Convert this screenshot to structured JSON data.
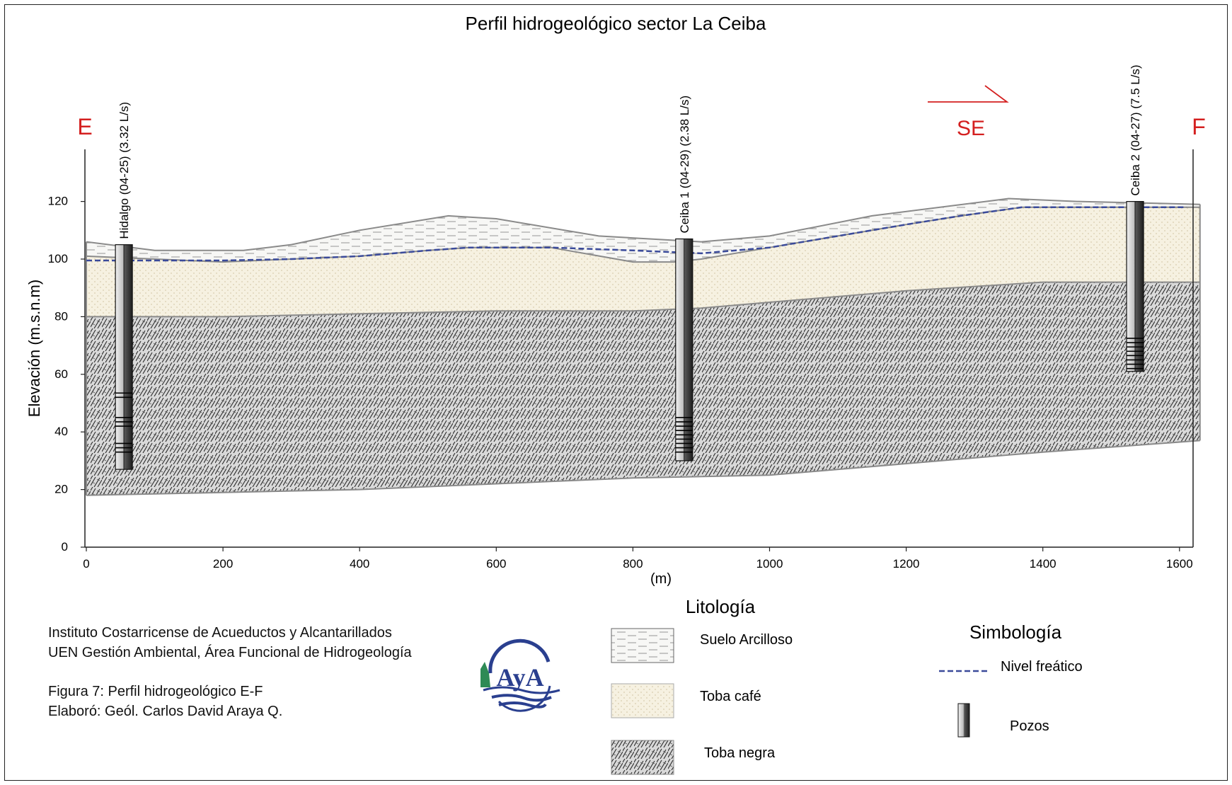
{
  "title": "Perfil hidrogeológico sector La Ceiba",
  "endpoints": {
    "left": "E",
    "right": "F"
  },
  "direction_label": "SE",
  "axes": {
    "ylabel": "Elevación (m.s.n.m)",
    "xlabel": "(m)",
    "yticks": [
      "0",
      "20",
      "40",
      "60",
      "80",
      "100",
      "120"
    ],
    "xticks": [
      "0",
      "200",
      "400",
      "600",
      "800",
      "1000",
      "1200",
      "1400",
      "1600"
    ]
  },
  "wells": [
    {
      "label": "Hidalgo (04-25) (3.32 L/s)",
      "distance_m": 55,
      "top_m": 105,
      "bottom_m": 27,
      "screens": [
        [
          52,
          54
        ],
        [
          42,
          45
        ],
        [
          33,
          36
        ]
      ]
    },
    {
      "label": "Ceiba 1 (04-29) (2.38 L/s)",
      "distance_m": 875,
      "top_m": 107,
      "bottom_m": 30,
      "screens": [
        [
          33,
          46
        ]
      ]
    },
    {
      "label": "Ceiba 2 (04-27) (7.5 L/s)",
      "distance_m": 1535,
      "top_m": 120,
      "bottom_m": 61,
      "screens": [
        [
          62,
          73
        ]
      ]
    }
  ],
  "layers": [
    {
      "name": "Suelo Arcilloso",
      "top": [
        [
          0,
          106
        ],
        [
          100,
          103
        ],
        [
          230,
          103
        ],
        [
          300,
          105
        ],
        [
          400,
          110
        ],
        [
          530,
          115
        ],
        [
          600,
          114
        ],
        [
          750,
          108
        ],
        [
          900,
          106
        ],
        [
          1000,
          108
        ],
        [
          1150,
          115
        ],
        [
          1350,
          121
        ],
        [
          1450,
          120
        ],
        [
          1630,
          119
        ]
      ]
    },
    {
      "name": "Toba café",
      "top": [
        [
          0,
          101
        ],
        [
          200,
          99
        ],
        [
          300,
          100
        ],
        [
          400,
          101
        ],
        [
          500,
          103
        ],
        [
          560,
          104
        ],
        [
          680,
          104
        ],
        [
          800,
          99
        ],
        [
          860,
          99
        ],
        [
          900,
          100
        ],
        [
          1000,
          104
        ],
        [
          1100,
          108
        ],
        [
          1200,
          112
        ],
        [
          1280,
          115
        ],
        [
          1370,
          118
        ],
        [
          1630,
          118
        ]
      ]
    },
    {
      "name": "Toba negra",
      "top": [
        [
          0,
          80
        ],
        [
          200,
          80
        ],
        [
          400,
          81
        ],
        [
          600,
          82
        ],
        [
          800,
          82
        ],
        [
          900,
          83
        ],
        [
          1000,
          85
        ],
        [
          1200,
          89
        ],
        [
          1400,
          92
        ],
        [
          1630,
          92
        ]
      ],
      "bottom": [
        [
          0,
          18
        ],
        [
          200,
          19
        ],
        [
          400,
          20
        ],
        [
          600,
          22
        ],
        [
          800,
          24
        ],
        [
          1000,
          25
        ],
        [
          1200,
          29
        ],
        [
          1400,
          33
        ],
        [
          1630,
          37
        ]
      ]
    }
  ],
  "water_table": [
    [
      0,
      99.5
    ],
    [
      200,
      99.5
    ],
    [
      300,
      100
    ],
    [
      400,
      101
    ],
    [
      500,
      103
    ],
    [
      560,
      104
    ],
    [
      680,
      104
    ],
    [
      800,
      103
    ],
    [
      900,
      102
    ],
    [
      1000,
      104
    ],
    [
      1100,
      108
    ],
    [
      1200,
      112
    ],
    [
      1280,
      115
    ],
    [
      1370,
      118
    ],
    [
      1550,
      118
    ],
    [
      1610,
      118
    ]
  ],
  "legend": {
    "litho_title": "Litología",
    "litho_items": [
      "Suelo Arcilloso",
      "Toba café",
      "Toba negra"
    ],
    "symb_title": "Simbología",
    "symb_items": [
      "Nivel freático",
      "Pozos"
    ]
  },
  "credits": {
    "line1": "Instituto Costarricense de Acueductos y Alcantarillados",
    "line2": "UEN Gestión Ambiental, Área Funcional de Hidrogeología",
    "line3": "Figura 7: Perfil hidrogeológico E-F",
    "line4": "Elaboró: Geól.  Carlos David Araya Q."
  },
  "logo_text": "AyA",
  "colors": {
    "endpoint": "#d42020",
    "water_table": "#3a4a9a",
    "suelo_fill": "#f7f7f5",
    "toba_cafe_fill": "#f6f1e1",
    "toba_negra_fill": "#d9d9d9",
    "logo_blue": "#2a3f8f",
    "logo_green": "#2e8a55"
  }
}
